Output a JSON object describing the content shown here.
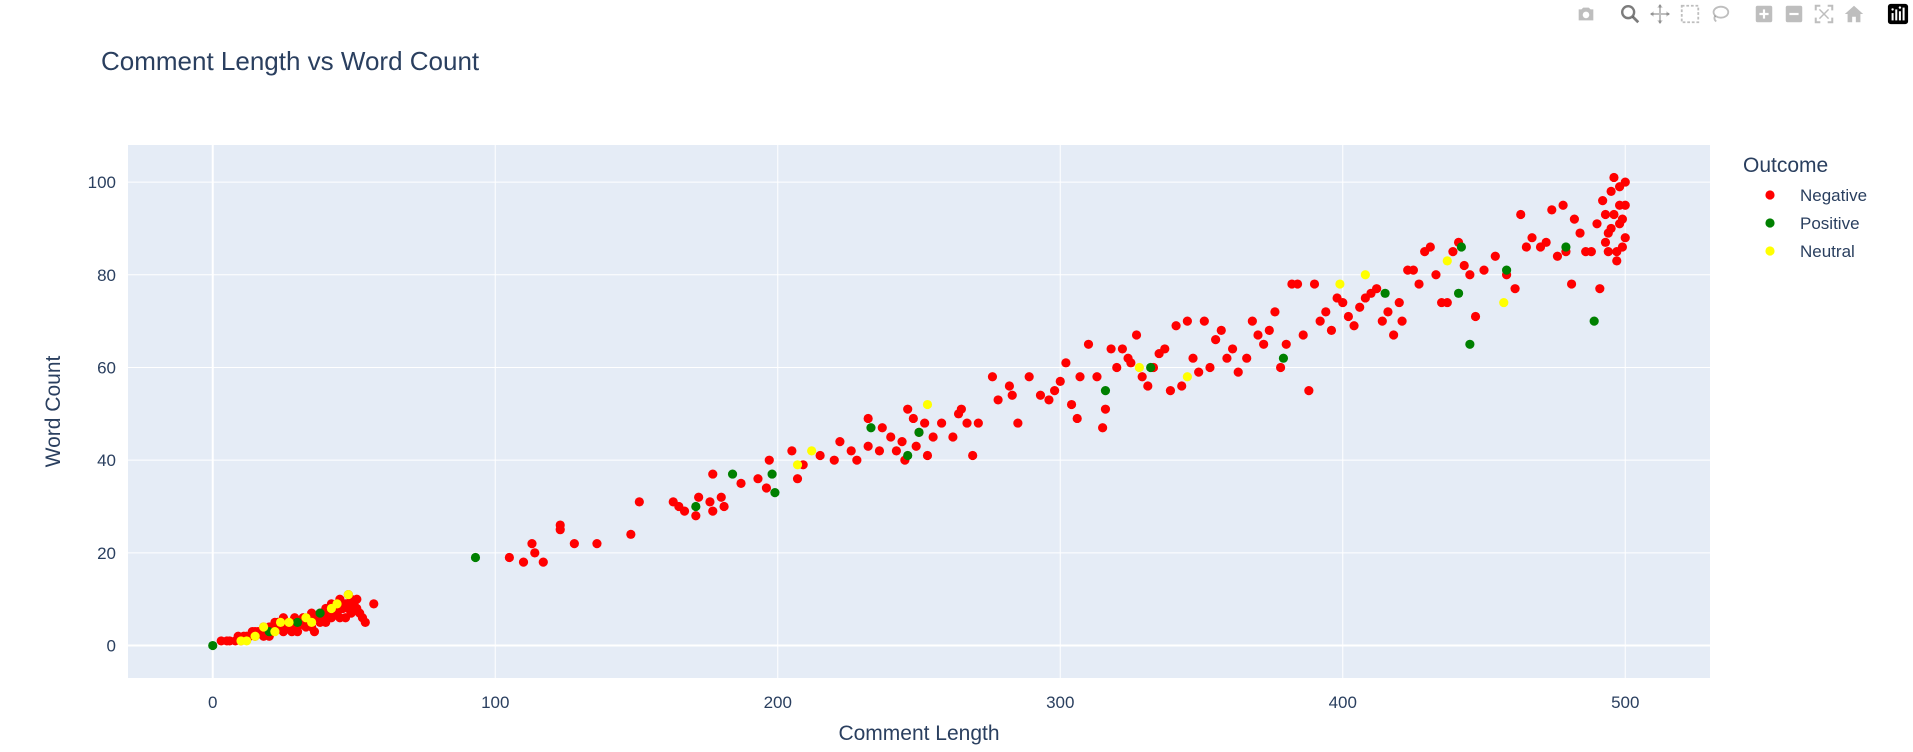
{
  "chart_data": {
    "type": "scatter",
    "title": "Comment Length vs Word Count",
    "xlabel": "Comment Length",
    "ylabel": "Word Count",
    "xlim": [
      -30,
      530
    ],
    "ylim": [
      -7,
      108
    ],
    "x_ticks": [
      0,
      100,
      200,
      300,
      400,
      500
    ],
    "y_ticks": [
      0,
      20,
      40,
      60,
      80,
      100
    ],
    "grid": true,
    "legend": {
      "title": "Outcome",
      "position": "top-right"
    },
    "series": [
      {
        "name": "Negative",
        "color": "#ff0000",
        "points": [
          [
            3,
            1
          ],
          [
            5,
            1
          ],
          [
            6,
            1
          ],
          [
            8,
            1
          ],
          [
            9,
            2
          ],
          [
            10,
            1
          ],
          [
            11,
            2
          ],
          [
            12,
            2
          ],
          [
            13,
            2
          ],
          [
            14,
            3
          ],
          [
            15,
            2
          ],
          [
            16,
            3
          ],
          [
            17,
            3
          ],
          [
            18,
            2
          ],
          [
            19,
            3
          ],
          [
            20,
            4
          ],
          [
            21,
            3
          ],
          [
            22,
            4
          ],
          [
            23,
            5
          ],
          [
            24,
            4
          ],
          [
            25,
            3
          ],
          [
            26,
            5
          ],
          [
            27,
            4
          ],
          [
            28,
            5
          ],
          [
            29,
            6
          ],
          [
            30,
            4
          ],
          [
            31,
            5
          ],
          [
            32,
            6
          ],
          [
            33,
            5
          ],
          [
            34,
            6
          ],
          [
            35,
            4
          ],
          [
            36,
            3
          ],
          [
            37,
            6
          ],
          [
            38,
            7
          ],
          [
            39,
            6
          ],
          [
            40,
            5
          ],
          [
            41,
            7
          ],
          [
            42,
            6
          ],
          [
            43,
            8
          ],
          [
            44,
            7
          ],
          [
            45,
            10
          ],
          [
            46,
            8
          ],
          [
            47,
            9
          ],
          [
            48,
            11
          ],
          [
            49,
            7
          ],
          [
            50,
            9
          ],
          [
            51,
            10
          ],
          [
            52,
            7
          ],
          [
            53,
            6
          ],
          [
            54,
            5
          ],
          [
            57,
            9
          ],
          [
            25,
            6
          ],
          [
            30,
            3
          ],
          [
            40,
            8
          ],
          [
            45,
            6
          ],
          [
            48,
            8
          ],
          [
            35,
            7
          ],
          [
            42,
            9
          ],
          [
            50,
            8
          ],
          [
            47,
            6
          ],
          [
            20,
            2
          ],
          [
            18,
            4
          ],
          [
            22,
            5
          ],
          [
            28,
            3
          ],
          [
            33,
            4
          ],
          [
            38,
            5
          ],
          [
            44,
            9
          ],
          [
            49,
            10
          ],
          [
            51,
            8
          ],
          [
            15,
            3
          ],
          [
            105,
            19
          ],
          [
            110,
            18
          ],
          [
            113,
            22
          ],
          [
            114,
            20
          ],
          [
            117,
            18
          ],
          [
            123,
            26
          ],
          [
            123,
            25
          ],
          [
            128,
            22
          ],
          [
            136,
            22
          ],
          [
            148,
            24
          ],
          [
            151,
            31
          ],
          [
            163,
            31
          ],
          [
            165,
            30
          ],
          [
            167,
            29
          ],
          [
            171,
            28
          ],
          [
            172,
            32
          ],
          [
            176,
            31
          ],
          [
            177,
            37
          ],
          [
            177,
            29
          ],
          [
            180,
            32
          ],
          [
            181,
            30
          ],
          [
            187,
            35
          ],
          [
            193,
            36
          ],
          [
            196,
            34
          ],
          [
            197,
            40
          ],
          [
            205,
            42
          ],
          [
            207,
            36
          ],
          [
            209,
            39
          ],
          [
            215,
            41
          ],
          [
            220,
            40
          ],
          [
            222,
            44
          ],
          [
            226,
            42
          ],
          [
            228,
            40
          ],
          [
            232,
            49
          ],
          [
            232,
            43
          ],
          [
            236,
            42
          ],
          [
            237,
            47
          ],
          [
            240,
            45
          ],
          [
            242,
            42
          ],
          [
            244,
            44
          ],
          [
            245,
            40
          ],
          [
            246,
            51
          ],
          [
            248,
            49
          ],
          [
            249,
            43
          ],
          [
            250,
            46
          ],
          [
            252,
            48
          ],
          [
            253,
            41
          ],
          [
            255,
            45
          ],
          [
            258,
            48
          ],
          [
            262,
            45
          ],
          [
            264,
            50
          ],
          [
            265,
            51
          ],
          [
            267,
            48
          ],
          [
            269,
            41
          ],
          [
            271,
            48
          ],
          [
            276,
            58
          ],
          [
            278,
            53
          ],
          [
            282,
            56
          ],
          [
            283,
            54
          ],
          [
            285,
            48
          ],
          [
            289,
            58
          ],
          [
            293,
            54
          ],
          [
            296,
            53
          ],
          [
            298,
            55
          ],
          [
            300,
            57
          ],
          [
            302,
            61
          ],
          [
            304,
            52
          ],
          [
            306,
            49
          ],
          [
            307,
            58
          ],
          [
            310,
            65
          ],
          [
            313,
            58
          ],
          [
            315,
            47
          ],
          [
            316,
            51
          ],
          [
            318,
            64
          ],
          [
            320,
            60
          ],
          [
            322,
            64
          ],
          [
            324,
            62
          ],
          [
            325,
            61
          ],
          [
            327,
            67
          ],
          [
            329,
            58
          ],
          [
            331,
            56
          ],
          [
            333,
            60
          ],
          [
            335,
            63
          ],
          [
            337,
            64
          ],
          [
            339,
            55
          ],
          [
            341,
            69
          ],
          [
            343,
            56
          ],
          [
            345,
            70
          ],
          [
            347,
            62
          ],
          [
            349,
            59
          ],
          [
            351,
            70
          ],
          [
            353,
            60
          ],
          [
            355,
            66
          ],
          [
            357,
            68
          ],
          [
            359,
            62
          ],
          [
            361,
            64
          ],
          [
            363,
            59
          ],
          [
            366,
            62
          ],
          [
            368,
            70
          ],
          [
            370,
            67
          ],
          [
            372,
            65
          ],
          [
            374,
            68
          ],
          [
            376,
            72
          ],
          [
            378,
            60
          ],
          [
            380,
            65
          ],
          [
            382,
            78
          ],
          [
            384,
            78
          ],
          [
            386,
            67
          ],
          [
            388,
            55
          ],
          [
            390,
            78
          ],
          [
            392,
            70
          ],
          [
            394,
            72
          ],
          [
            396,
            68
          ],
          [
            398,
            75
          ],
          [
            400,
            74
          ],
          [
            402,
            71
          ],
          [
            404,
            69
          ],
          [
            406,
            73
          ],
          [
            408,
            75
          ],
          [
            410,
            76
          ],
          [
            412,
            77
          ],
          [
            414,
            70
          ],
          [
            416,
            72
          ],
          [
            418,
            67
          ],
          [
            420,
            74
          ],
          [
            421,
            70
          ],
          [
            423,
            81
          ],
          [
            425,
            81
          ],
          [
            427,
            78
          ],
          [
            429,
            85
          ],
          [
            431,
            86
          ],
          [
            433,
            80
          ],
          [
            435,
            74
          ],
          [
            437,
            74
          ],
          [
            439,
            85
          ],
          [
            441,
            87
          ],
          [
            443,
            82
          ],
          [
            445,
            80
          ],
          [
            447,
            71
          ],
          [
            450,
            81
          ],
          [
            454,
            84
          ],
          [
            458,
            80
          ],
          [
            461,
            77
          ],
          [
            463,
            93
          ],
          [
            465,
            86
          ],
          [
            467,
            88
          ],
          [
            470,
            86
          ],
          [
            472,
            87
          ],
          [
            474,
            94
          ],
          [
            476,
            84
          ],
          [
            478,
            95
          ],
          [
            479,
            85
          ],
          [
            481,
            78
          ],
          [
            482,
            92
          ],
          [
            484,
            89
          ],
          [
            486,
            85
          ],
          [
            488,
            85
          ],
          [
            490,
            91
          ],
          [
            491,
            77
          ],
          [
            492,
            96
          ],
          [
            493,
            93
          ],
          [
            494,
            89
          ],
          [
            495,
            90
          ],
          [
            496,
            101
          ],
          [
            497,
            83
          ],
          [
            498,
            95
          ],
          [
            499,
            86
          ],
          [
            500,
            100
          ],
          [
            495,
            98
          ],
          [
            497,
            85
          ],
          [
            499,
            92
          ],
          [
            500,
            88
          ],
          [
            493,
            87
          ],
          [
            498,
            91
          ],
          [
            496,
            93
          ],
          [
            500,
            95
          ],
          [
            494,
            85
          ],
          [
            498,
            99
          ]
        ]
      },
      {
        "name": "Positive",
        "color": "#008000",
        "points": [
          [
            0,
            0
          ],
          [
            20,
            3
          ],
          [
            30,
            5
          ],
          [
            38,
            7
          ],
          [
            93,
            19
          ],
          [
            171,
            30
          ],
          [
            184,
            37
          ],
          [
            198,
            37
          ],
          [
            199,
            33
          ],
          [
            233,
            47
          ],
          [
            246,
            41
          ],
          [
            250,
            46
          ],
          [
            316,
            55
          ],
          [
            332,
            60
          ],
          [
            379,
            62
          ],
          [
            415,
            76
          ],
          [
            441,
            76
          ],
          [
            442,
            86
          ],
          [
            445,
            65
          ],
          [
            458,
            81
          ],
          [
            479,
            86
          ],
          [
            489,
            70
          ]
        ]
      },
      {
        "name": "Neutral",
        "color": "#ffff00",
        "points": [
          [
            10,
            1
          ],
          [
            12,
            1
          ],
          [
            15,
            2
          ],
          [
            18,
            4
          ],
          [
            22,
            3
          ],
          [
            24,
            5
          ],
          [
            27,
            5
          ],
          [
            33,
            6
          ],
          [
            35,
            5
          ],
          [
            42,
            8
          ],
          [
            44,
            9
          ],
          [
            48,
            11
          ],
          [
            207,
            39
          ],
          [
            212,
            42
          ],
          [
            253,
            52
          ],
          [
            328,
            60
          ],
          [
            345,
            58
          ],
          [
            399,
            78
          ],
          [
            408,
            80
          ],
          [
            437,
            83
          ],
          [
            457,
            74
          ]
        ]
      }
    ]
  },
  "modebar": {
    "icons": [
      "camera-icon",
      "zoom-icon",
      "pan-icon",
      "box-select-icon",
      "lasso-icon",
      "zoom-in-icon",
      "zoom-out-icon",
      "autoscale-icon",
      "home-icon",
      "plotly-logo-icon"
    ]
  }
}
